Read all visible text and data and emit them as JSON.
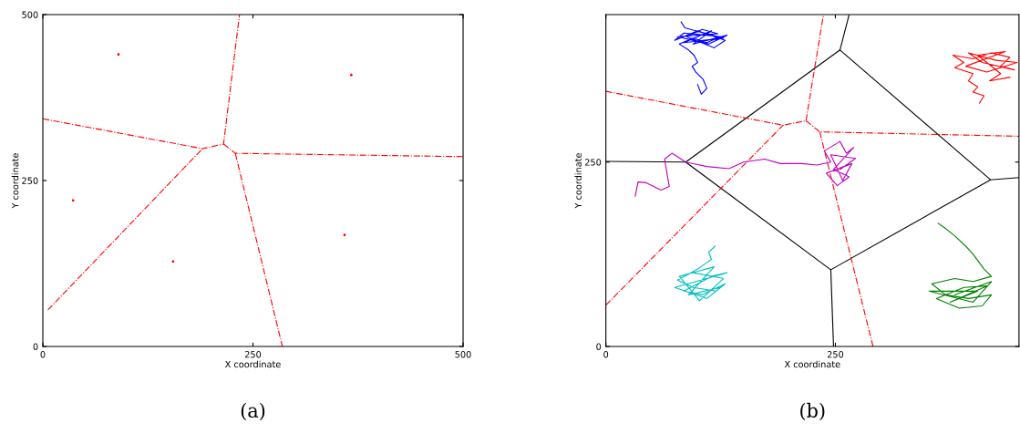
{
  "chart_data": [
    {
      "type": "line",
      "xlabel": "X coordinate",
      "ylabel": "Y coordinate",
      "xlim": [
        0,
        500
      ],
      "ylim": [
        0,
        500
      ],
      "xticks": [
        0,
        250,
        500
      ],
      "yticks": [
        0,
        250,
        500
      ],
      "grid": false,
      "legend": false,
      "annotations": [
        "(a)"
      ],
      "series": [
        {
          "type": "scatter",
          "color": "#ff0000",
          "marker": "circle",
          "x": [
            90,
            367,
            36,
            155,
            359
          ],
          "values": [
            440,
            409,
            220,
            128,
            168
          ]
        },
        {
          "type": "line",
          "color": "#ff0000",
          "line_style": "dashdot",
          "marker": "none",
          "x": [
            0,
            190,
            215,
            234
          ],
          "values": [
            343,
            298,
            305,
            500
          ]
        },
        {
          "color": "#ff0000",
          "line_style": "dashdot",
          "marker": "none",
          "x": [
            6,
            190
          ],
          "values": [
            55,
            298
          ]
        },
        {
          "type": "line",
          "color": "#ff0000",
          "line_style": "dashdot",
          "marker": "none",
          "x": [
            215,
            229,
            500
          ],
          "values": [
            305,
            291,
            286
          ]
        },
        {
          "type": "line",
          "color": "#ff0000",
          "line_style": "dashdot",
          "marker": "none",
          "x": [
            229,
            285
          ],
          "values": [
            291,
            0
          ]
        }
      ]
    },
    {
      "type": "line",
      "xlabel": "X coordinate",
      "ylabel": "Y coordinate",
      "xlim": [
        0,
        450
      ],
      "ylim": [
        0,
        450
      ],
      "xticks": [
        0,
        250
      ],
      "yticks": [
        0,
        250
      ],
      "grid": false,
      "legend": false,
      "annotations": [
        "(b)"
      ],
      "series": [
        {
          "type": "line",
          "color": "#000000",
          "line_style": "solid",
          "marker": "none",
          "x": [
            0,
            87,
            255,
            419,
            245,
            87
          ],
          "values": [
            251,
            250,
            402,
            226,
            104,
            250
          ]
        },
        {
          "type": "line",
          "color": "#000000",
          "line_style": "solid",
          "marker": "none",
          "x": [
            255,
            265
          ],
          "values": [
            402,
            450
          ]
        },
        {
          "type": "line",
          "color": "#000000",
          "line_style": "solid",
          "marker": "none",
          "x": [
            419,
            450
          ],
          "values": [
            226,
            229
          ]
        },
        {
          "type": "line",
          "color": "#000000",
          "line_style": "solid",
          "marker": "none",
          "x": [
            245,
            248
          ],
          "values": [
            104,
            0
          ]
        },
        {
          "type": "line",
          "color": "#ff0000",
          "line_style": "dashdot",
          "marker": "none",
          "x": [
            0,
            193,
            218,
            237
          ],
          "values": [
            346,
            300,
            306,
            450
          ]
        },
        {
          "type": "line",
          "color": "#ff0000",
          "line_style": "dashdot",
          "marker": "none",
          "x": [
            0,
            193
          ],
          "values": [
            56,
            300
          ]
        },
        {
          "type": "line",
          "color": "#ff0000",
          "line_style": "dashdot",
          "marker": "none",
          "x": [
            218,
            233,
            450
          ],
          "values": [
            306,
            291,
            285
          ]
        },
        {
          "type": "line",
          "color": "#ff0000",
          "line_style": "dashdot",
          "marker": "none",
          "x": [
            233,
            291
          ],
          "values": [
            291,
            0
          ]
        },
        {
          "color": "#0000ff",
          "line_style": "solid",
          "marker": "none",
          "x": [
            100,
            104,
            110,
            106,
            98,
            94,
            100,
            96,
            90,
            80,
            95,
            110,
            125,
            85,
            75,
            100,
            130,
            118,
            88,
            105,
            122,
            78,
            112,
            132,
            95,
            115,
            85,
            128,
            86,
            82
          ],
          "values": [
            355,
            342,
            350,
            362,
            372,
            380,
            385,
            395,
            402,
            410,
            418,
            412,
            420,
            425,
            415,
            428,
            415,
            405,
            420,
            430,
            424,
            420,
            410,
            422,
            410,
            428,
            412,
            418,
            432,
            440
          ]
        },
        {
          "type": "line",
          "color": "#ff0000",
          "line_style": "solid",
          "marker": "none",
          "x": [
            407,
            412,
            400,
            405,
            395,
            400,
            380,
            390,
            378,
            400,
            420,
            440,
            430,
            445,
            410,
            395,
            425,
            448,
            415,
            392,
            435,
            405,
            430,
            418,
            440
          ],
          "values": [
            330,
            340,
            345,
            352,
            360,
            370,
            378,
            385,
            395,
            390,
            398,
            392,
            380,
            375,
            385,
            398,
            388,
            385,
            372,
            380,
            400,
            395,
            370,
            360,
            365
          ]
        },
        {
          "type": "line",
          "color": "#bf00bf",
          "line_style": "solid",
          "marker": "none",
          "x": [
            32,
            35,
            44,
            60,
            69,
            64,
            72,
            87,
            110,
            134,
            150,
            173,
            190,
            213,
            230,
            245,
            238,
            255,
            262,
            270,
            248,
            265,
            252,
            240,
            268,
            258,
            245,
            272,
            255
          ],
          "values": [
            204,
            223,
            222,
            212,
            217,
            254,
            262,
            250,
            244,
            241,
            250,
            254,
            248,
            248,
            246,
            250,
            265,
            278,
            262,
            270,
            240,
            230,
            218,
            235,
            248,
            225,
            260,
            255,
            240
          ]
        },
        {
          "type": "line",
          "color": "#00bfbf",
          "line_style": "solid",
          "marker": "none",
          "x": [
            119,
            112,
            115,
            108,
            100,
            90,
            78,
            95,
            120,
            130,
            105,
            85,
            115,
            132,
            98,
            75,
            110,
            125,
            90,
            118,
            80,
            102,
            128,
            95
          ],
          "values": [
            136,
            128,
            118,
            112,
            105,
            98,
            90,
            80,
            75,
            85,
            70,
            75,
            95,
            100,
            88,
            80,
            65,
            80,
            70,
            108,
            95,
            62,
            92,
            100
          ]
        },
        {
          "type": "line",
          "color": "#008000",
          "line_style": "solid",
          "marker": "none",
          "x": [
            362,
            370,
            380,
            392,
            400,
            412,
            420,
            400,
            380,
            355,
            370,
            395,
            420,
            410,
            385,
            360,
            390,
            415,
            375,
            405,
            352,
            400,
            420,
            380
          ],
          "values": [
            167,
            160,
            150,
            136,
            125,
            105,
            95,
            88,
            92,
            85,
            70,
            65,
            70,
            55,
            52,
            65,
            80,
            82,
            60,
            75,
            75,
            60,
            88,
            70
          ]
        }
      ]
    }
  ]
}
